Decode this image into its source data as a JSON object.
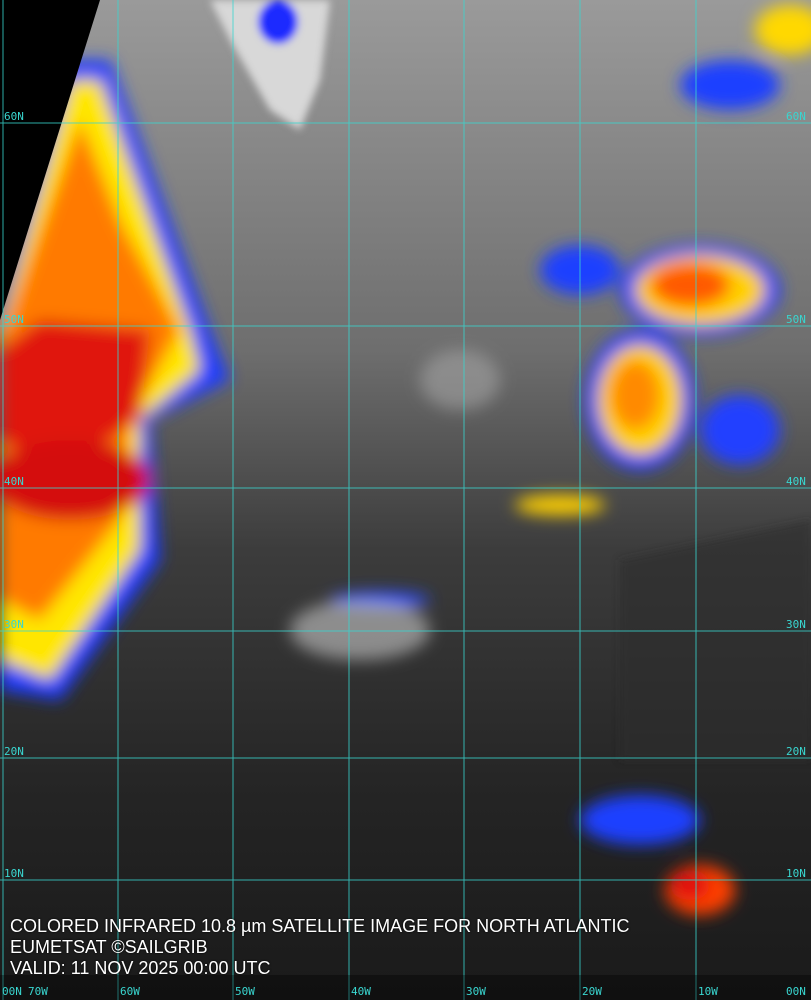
{
  "caption": {
    "title": "COLORED INFRARED 10.8 µm SATELLITE IMAGE FOR NORTH ATLANTIC",
    "credit": "EUMETSAT ©SAILGRIB",
    "valid": "VALID:  11 NOV 2025 00:00 UTC"
  },
  "grid": {
    "color": "#39d6d0",
    "latitudes": [
      "60N",
      "50N",
      "40N",
      "30N",
      "20N",
      "10N"
    ],
    "longitudes": [
      "70W",
      "60W",
      "50W",
      "40W",
      "30W",
      "20W",
      "10W"
    ],
    "equator_labels": [
      "00N",
      "00N"
    ]
  },
  "colors": {
    "cold_cloud_red": "#e01010",
    "cloud_yellow": "#ffe000",
    "cloud_blue": "#1030ff",
    "ocean_clear": "#2a2a2a"
  }
}
